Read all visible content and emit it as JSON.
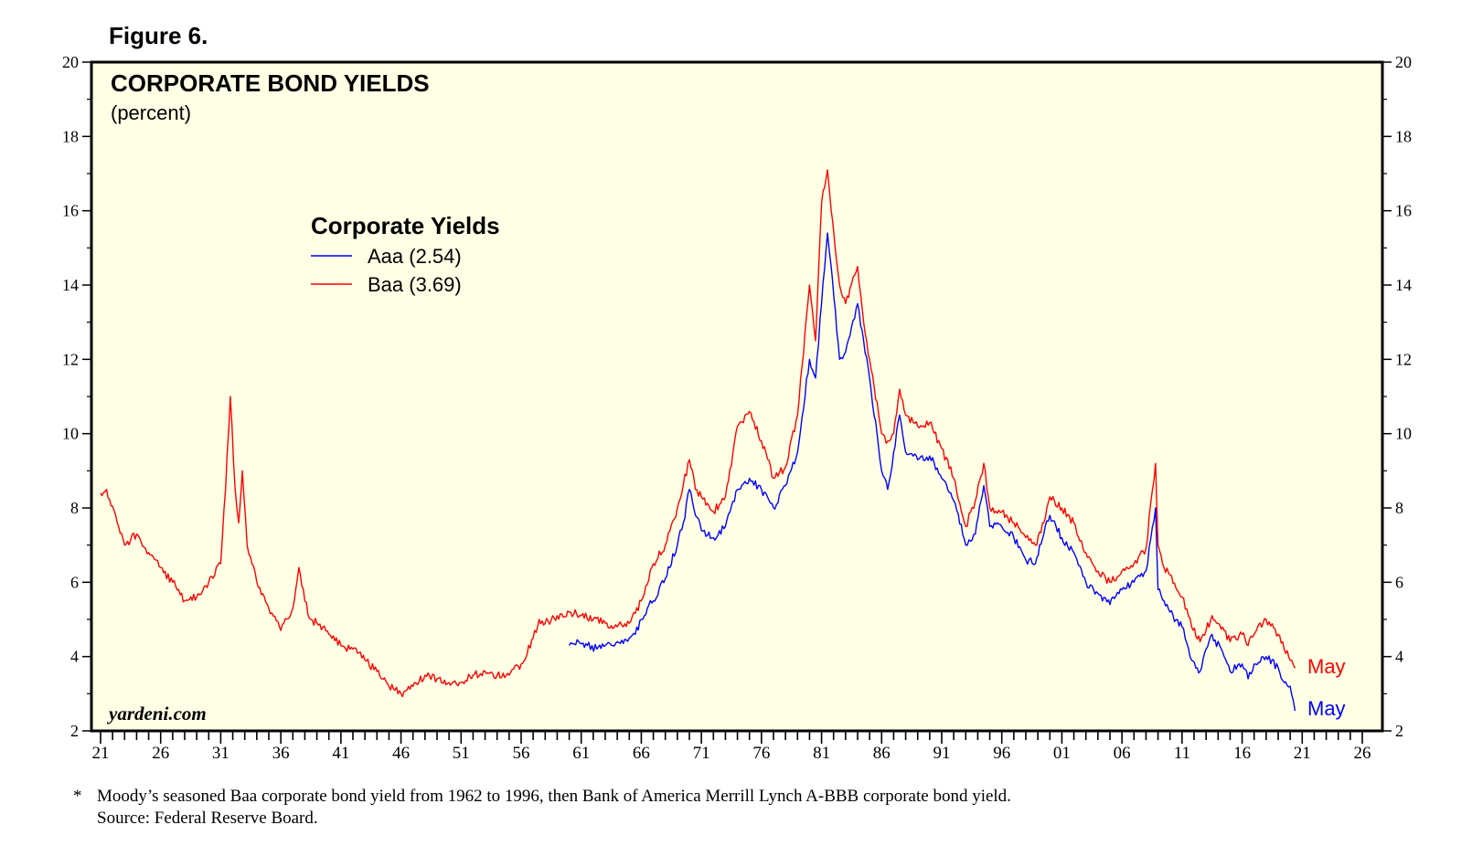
{
  "figure_label": "Figure 6.",
  "footnote": {
    "marker": "*",
    "text": "Moody’s seasoned Baa corporate bond yield from 1962 to 1996, then Bank of America Merrill Lynch A-BBB corporate bond yield.",
    "source": "Source: Federal Reserve Board."
  },
  "chart_data": {
    "type": "line",
    "title": "CORPORATE BOND YIELDS",
    "subtitle": "(percent)",
    "watermark": "yardeni.com",
    "ylim": [
      2,
      20
    ],
    "y_ticks": [
      2,
      4,
      6,
      8,
      10,
      12,
      14,
      16,
      18,
      20
    ],
    "xlim": [
      1921,
      2026
    ],
    "x_tick_labels": [
      "21",
      "26",
      "31",
      "36",
      "41",
      "46",
      "51",
      "56",
      "61",
      "66",
      "71",
      "76",
      "81",
      "86",
      "91",
      "96",
      "01",
      "06",
      "11",
      "16",
      "21",
      "26"
    ],
    "x_tick_years": [
      1921,
      1926,
      1931,
      1936,
      1941,
      1946,
      1951,
      1956,
      1961,
      1966,
      1971,
      1976,
      1981,
      1986,
      1991,
      1996,
      2001,
      2006,
      2011,
      2016,
      2021,
      2026
    ],
    "legend": {
      "title": "Corporate Yields",
      "placement": "upper-left"
    },
    "colors": {
      "Aaa": "#0000ff",
      "Baa": "#ff0000"
    },
    "series": [
      {
        "name": "Aaa (2.54)",
        "end_label": "May",
        "x": [
          1960.0,
          1960.8,
          1961.5,
          1962.3,
          1963.0,
          1964.0,
          1965.0,
          1965.5,
          1966.0,
          1966.5,
          1967.0,
          1968.0,
          1969.0,
          1969.5,
          1970.0,
          1970.5,
          1971.0,
          1972.0,
          1973.0,
          1974.0,
          1975.0,
          1976.0,
          1977.0,
          1978.0,
          1979.0,
          1980.0,
          1980.5,
          1981.0,
          1981.5,
          1981.8,
          1982.5,
          1983.0,
          1984.0,
          1984.5,
          1985.0,
          1986.0,
          1986.5,
          1987.0,
          1987.5,
          1988.0,
          1989.0,
          1990.0,
          1991.0,
          1992.0,
          1993.0,
          1993.8,
          1994.5,
          1995.0,
          1996.0,
          1997.0,
          1998.0,
          1998.8,
          1999.5,
          2000.0,
          2001.0,
          2002.0,
          2003.0,
          2004.0,
          2005.0,
          2006.0,
          2007.0,
          2008.0,
          2008.8,
          2009.0,
          2009.5,
          2010.0,
          2011.0,
          2011.8,
          2012.5,
          2013.0,
          2013.5,
          2014.5,
          2015.0,
          2016.0,
          2016.5,
          2017.0,
          2018.0,
          2019.0,
          2019.5,
          2020.0,
          2020.4
        ],
        "values": [
          4.3,
          4.4,
          4.3,
          4.2,
          4.3,
          4.4,
          4.5,
          4.6,
          5.0,
          5.3,
          5.5,
          6.1,
          7.0,
          7.6,
          8.5,
          7.8,
          7.4,
          7.2,
          7.5,
          8.5,
          8.8,
          8.5,
          8.0,
          8.6,
          9.5,
          12.0,
          11.5,
          13.5,
          15.4,
          14.5,
          12.0,
          12.2,
          13.5,
          12.5,
          11.5,
          9.0,
          8.5,
          9.5,
          10.5,
          9.5,
          9.3,
          9.4,
          8.8,
          8.2,
          7.0,
          7.3,
          8.6,
          7.5,
          7.5,
          7.2,
          6.6,
          6.5,
          7.3,
          7.8,
          7.2,
          6.8,
          6.0,
          5.7,
          5.4,
          5.8,
          6.0,
          6.3,
          8.0,
          5.8,
          5.5,
          5.2,
          4.8,
          3.9,
          3.6,
          4.2,
          4.6,
          4.0,
          3.6,
          3.8,
          3.4,
          3.8,
          4.0,
          3.7,
          3.3,
          3.2,
          2.54
        ]
      },
      {
        "name": "Baa (3.69)",
        "end_label": "May",
        "x": [
          1921.0,
          1921.5,
          1922.5,
          1923.0,
          1924.0,
          1925.0,
          1926.0,
          1927.0,
          1928.0,
          1929.0,
          1930.0,
          1931.0,
          1931.4,
          1931.8,
          1932.2,
          1932.5,
          1932.8,
          1933.2,
          1933.6,
          1934.0,
          1935.0,
          1936.0,
          1937.0,
          1937.5,
          1938.0,
          1938.5,
          1939.0,
          1940.0,
          1941.0,
          1942.0,
          1943.0,
          1944.0,
          1945.0,
          1946.0,
          1947.0,
          1948.0,
          1949.0,
          1950.0,
          1951.0,
          1952.0,
          1953.0,
          1954.0,
          1955.0,
          1956.0,
          1957.0,
          1957.5,
          1958.0,
          1959.0,
          1960.0,
          1961.0,
          1962.0,
          1963.0,
          1964.0,
          1965.0,
          1966.0,
          1967.0,
          1968.0,
          1969.0,
          1970.0,
          1970.5,
          1971.0,
          1972.0,
          1973.0,
          1974.0,
          1975.0,
          1976.0,
          1977.0,
          1978.0,
          1979.0,
          1980.0,
          1980.5,
          1981.0,
          1981.5,
          1981.8,
          1982.5,
          1983.0,
          1984.0,
          1984.5,
          1985.0,
          1986.0,
          1986.5,
          1987.0,
          1987.5,
          1988.0,
          1989.0,
          1990.0,
          1991.0,
          1992.0,
          1993.0,
          1993.8,
          1994.5,
          1995.0,
          1996.0,
          1997.0,
          1998.0,
          1998.8,
          1999.5,
          2000.0,
          2001.0,
          2002.0,
          2003.0,
          2004.0,
          2005.0,
          2006.0,
          2007.0,
          2008.0,
          2008.8,
          2009.0,
          2009.5,
          2010.0,
          2011.0,
          2011.8,
          2012.5,
          2013.0,
          2013.5,
          2014.5,
          2015.0,
          2016.0,
          2016.5,
          2017.0,
          2018.0,
          2019.0,
          2019.5,
          2020.0,
          2020.4
        ],
        "values": [
          8.4,
          8.5,
          7.5,
          7.0,
          7.3,
          6.8,
          6.4,
          6.0,
          5.5,
          5.6,
          6.0,
          6.5,
          8.5,
          11.0,
          8.5,
          7.6,
          9.0,
          7.0,
          6.5,
          6.0,
          5.3,
          4.7,
          5.3,
          6.4,
          5.5,
          5.0,
          4.9,
          4.6,
          4.3,
          4.2,
          3.9,
          3.6,
          3.2,
          3.0,
          3.2,
          3.5,
          3.4,
          3.3,
          3.3,
          3.5,
          3.6,
          3.5,
          3.5,
          3.8,
          4.5,
          5.0,
          4.9,
          5.1,
          5.2,
          5.1,
          5.0,
          4.9,
          4.8,
          4.9,
          5.5,
          6.5,
          7.0,
          8.0,
          9.3,
          8.5,
          8.3,
          7.9,
          8.3,
          10.2,
          10.6,
          9.8,
          8.8,
          9.1,
          10.5,
          14.0,
          12.5,
          16.2,
          17.1,
          16.0,
          14.0,
          13.5,
          14.5,
          13.0,
          12.0,
          10.0,
          9.8,
          10.0,
          11.2,
          10.5,
          10.2,
          10.3,
          9.6,
          8.8,
          7.5,
          8.2,
          9.2,
          8.0,
          7.9,
          7.6,
          7.2,
          7.0,
          7.6,
          8.3,
          8.0,
          7.6,
          6.8,
          6.3,
          6.0,
          6.3,
          6.5,
          6.9,
          9.2,
          7.0,
          6.4,
          6.2,
          5.6,
          4.8,
          4.4,
          4.7,
          5.1,
          4.7,
          4.4,
          4.6,
          4.3,
          4.6,
          5.0,
          4.6,
          4.2,
          3.9,
          3.69
        ]
      }
    ]
  }
}
